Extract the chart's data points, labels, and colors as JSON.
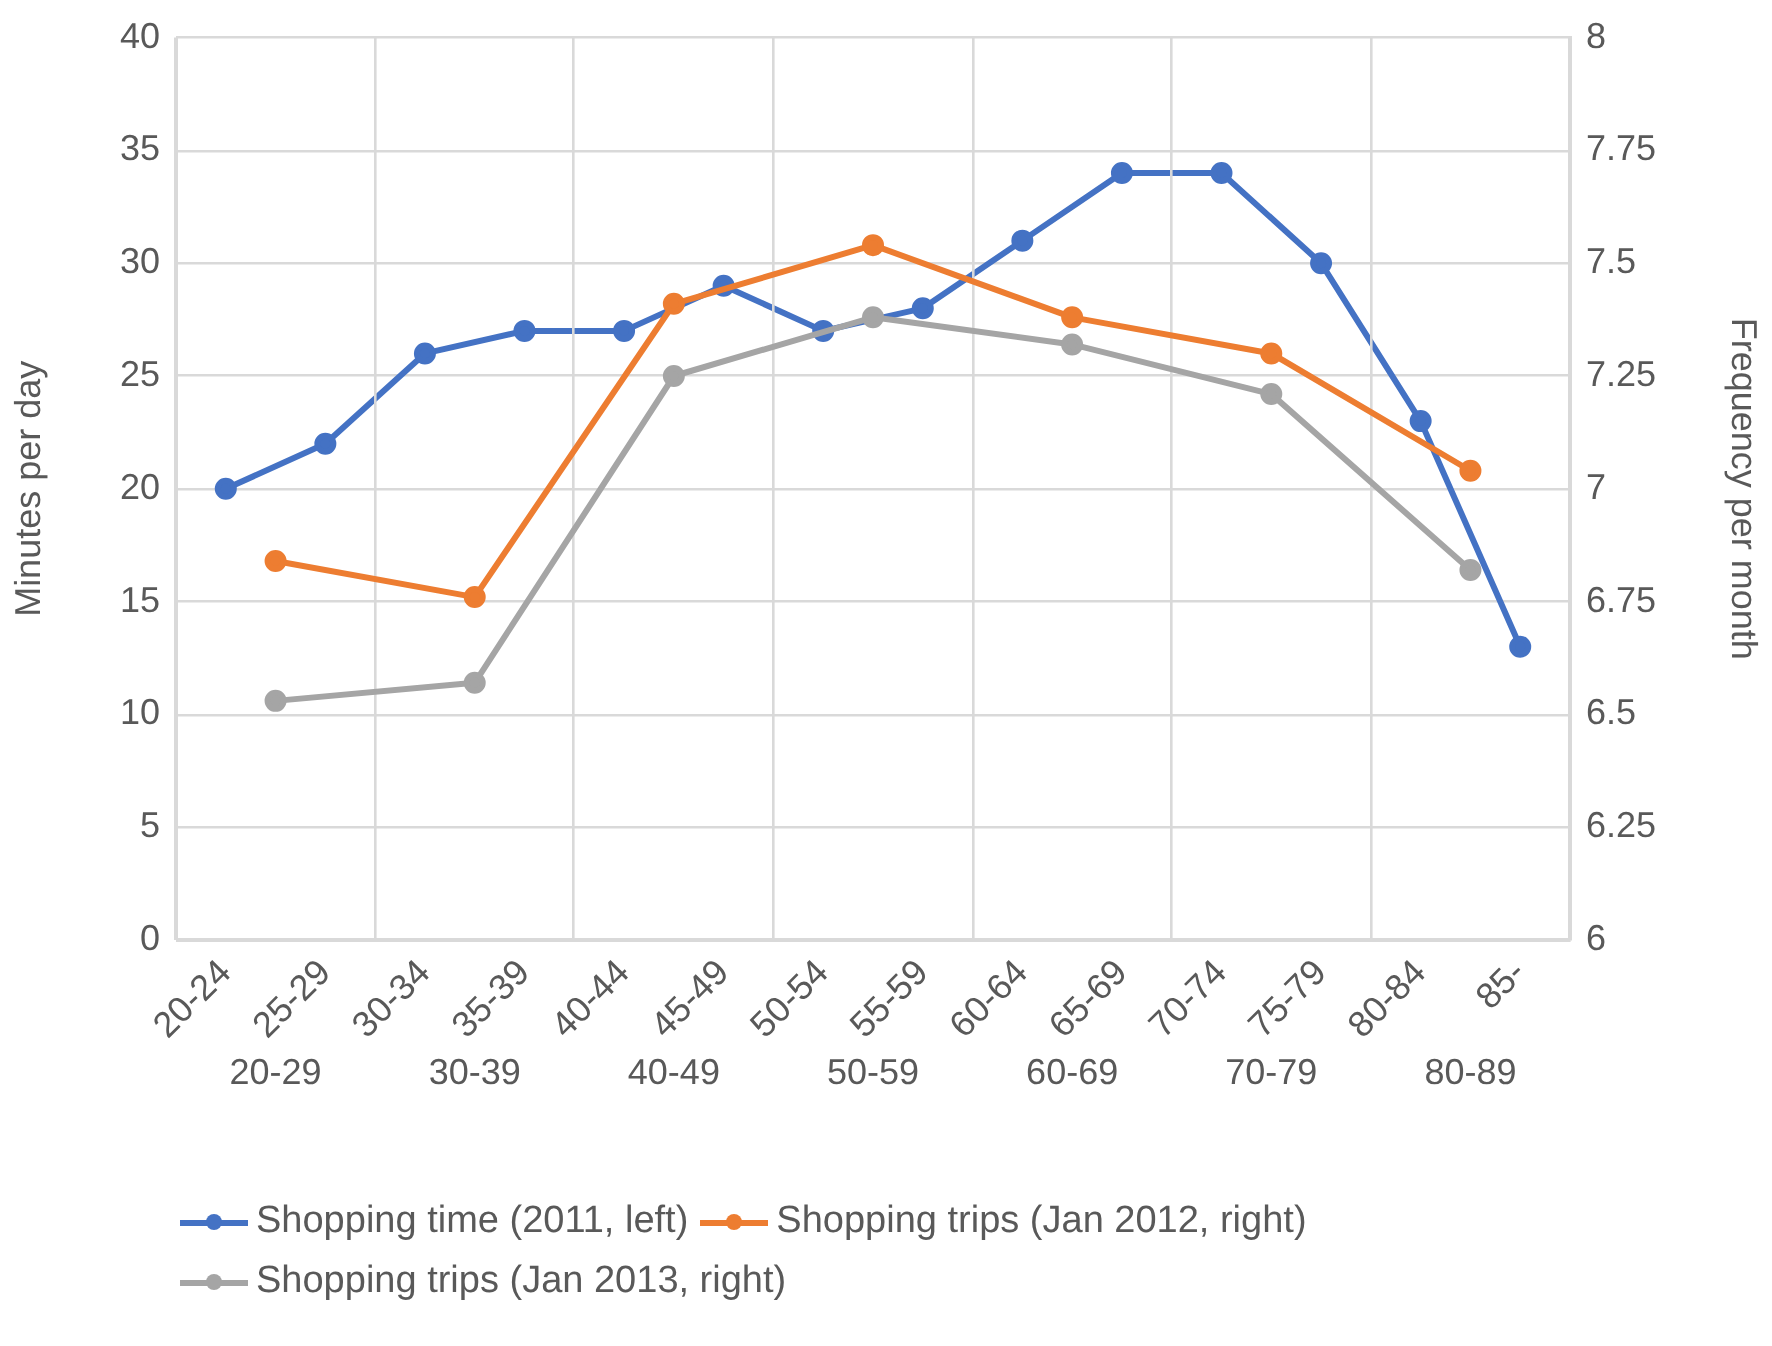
{
  "chart_data": [
    {
      "type": "line",
      "categories": [
        "20-24",
        "25-29",
        "30-34",
        "35-39",
        "40-44",
        "45-49",
        "50-54",
        "55-59",
        "60-64",
        "65-69",
        "70-74",
        "75-79",
        "80-84",
        "85-"
      ],
      "series": [
        {
          "name": "Shopping time (2011, left)",
          "color": "#4472c4",
          "values": [
            20,
            22,
            26,
            27,
            27,
            29,
            27,
            28,
            31,
            34,
            34,
            30,
            23,
            13
          ]
        }
      ],
      "ylabel": "Minutes per day",
      "ylim": [
        0,
        40
      ],
      "yticks": [
        0,
        5,
        10,
        15,
        20,
        25,
        30,
        35,
        40
      ],
      "grid": "y",
      "legend": "bottom",
      "marker": "circle"
    },
    {
      "type": "line",
      "categories": [
        "20-29",
        "30-39",
        "40-49",
        "50-59",
        "60-69",
        "70-79",
        "80-89"
      ],
      "series": [
        {
          "name": "Shopping trips (Jan 2012, right)",
          "color": "#ed7d31",
          "axis": "y2",
          "values": [
            6.84,
            6.76,
            7.41,
            7.54,
            7.38,
            7.3,
            7.04
          ]
        },
        {
          "name": "Shopping trips (Jan 2013, right)",
          "color": "#a5a5a5",
          "axis": "y2",
          "values": [
            6.53,
            6.57,
            7.25,
            7.38,
            7.32,
            7.21,
            6.82
          ]
        }
      ],
      "y2label": "Frequency per month",
      "y2lim": [
        6,
        8
      ],
      "y2ticks": [
        6,
        6.25,
        6.5,
        6.75,
        7,
        7.25,
        7.5,
        7.75,
        8
      ],
      "grid": "x",
      "legend": "bottom",
      "marker": "circle"
    }
  ]
}
